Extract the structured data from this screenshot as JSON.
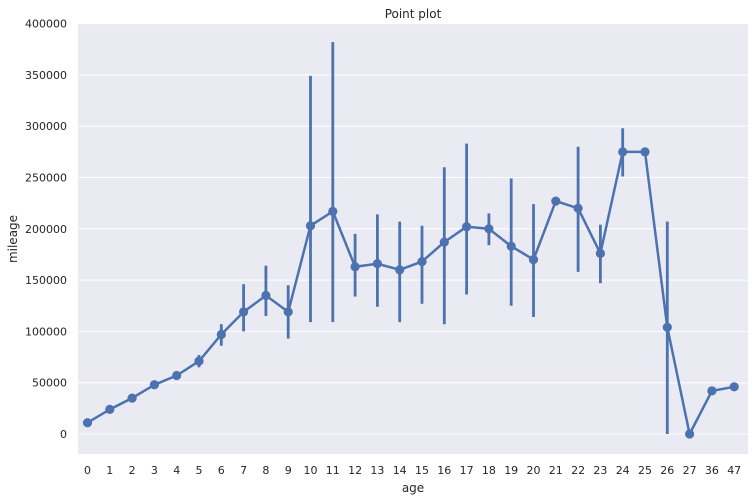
{
  "chart_data": {
    "type": "line",
    "title": "Point plot",
    "xlabel": "age",
    "ylabel": "mileage",
    "ylim": [
      -25000,
      400000
    ],
    "yticks": [
      0,
      50000,
      100000,
      150000,
      200000,
      250000,
      300000,
      350000,
      400000
    ],
    "ytick_labels": [
      "0",
      "50000",
      "100000",
      "150000",
      "200000",
      "250000",
      "300000",
      "350000",
      "400000"
    ],
    "grid": true,
    "colors": {
      "series": "#4c72b0",
      "plot_background": "#eaeaf2",
      "grid": "#ffffff"
    },
    "categories": [
      "0",
      "1",
      "2",
      "3",
      "4",
      "5",
      "6",
      "7",
      "8",
      "9",
      "10",
      "11",
      "12",
      "13",
      "14",
      "15",
      "16",
      "17",
      "18",
      "19",
      "20",
      "21",
      "22",
      "23",
      "24",
      "25",
      "26",
      "27",
      "36",
      "47"
    ],
    "values": [
      11000,
      24000,
      35000,
      48000,
      57000,
      71000,
      97000,
      119000,
      135000,
      119000,
      203000,
      217000,
      163000,
      166000,
      160000,
      168000,
      187000,
      202000,
      200000,
      183000,
      170000,
      227000,
      220000,
      176000,
      275000,
      275000,
      104000,
      0,
      42000,
      46000
    ],
    "ci_low": [
      null,
      null,
      null,
      null,
      55000,
      65000,
      86000,
      100000,
      115000,
      93000,
      109000,
      109000,
      134000,
      124000,
      109000,
      127000,
      107000,
      136000,
      184000,
      125000,
      114000,
      null,
      158000,
      147000,
      251000,
      null,
      0,
      null,
      null,
      null
    ],
    "ci_high": [
      null,
      null,
      null,
      null,
      60000,
      77000,
      107000,
      146000,
      164000,
      145000,
      349000,
      382000,
      195000,
      214000,
      207000,
      203000,
      260000,
      283000,
      215000,
      249000,
      224000,
      null,
      280000,
      204000,
      298000,
      null,
      207000,
      null,
      null,
      null
    ]
  }
}
